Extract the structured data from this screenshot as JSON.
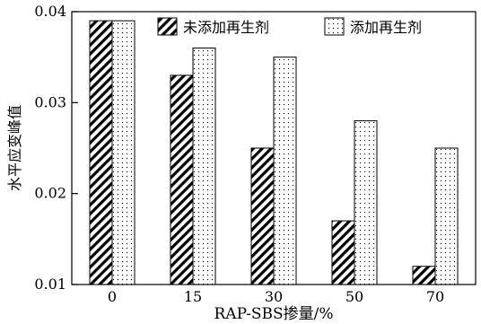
{
  "chart_data": {
    "type": "bar",
    "title": "",
    "xlabel": "RAP-SBS掺量/%",
    "ylabel": "水平应变峰值",
    "categories": [
      "0",
      "15",
      "30",
      "50",
      "70"
    ],
    "ylim": [
      0.01,
      0.04
    ],
    "yticks": [
      "0.01",
      "0.02",
      "0.03",
      "0.04"
    ],
    "ytick_values": [
      0.01,
      0.02,
      0.03,
      0.04
    ],
    "grid": false,
    "legend_position": "top-right",
    "series": [
      {
        "name": "未添加再生剂",
        "pattern": "hatch",
        "values": [
          0.039,
          0.033,
          0.025,
          0.017,
          0.012
        ]
      },
      {
        "name": "添加再生剂",
        "pattern": "dots",
        "values": [
          0.039,
          0.036,
          0.035,
          0.028,
          0.025
        ]
      }
    ]
  }
}
